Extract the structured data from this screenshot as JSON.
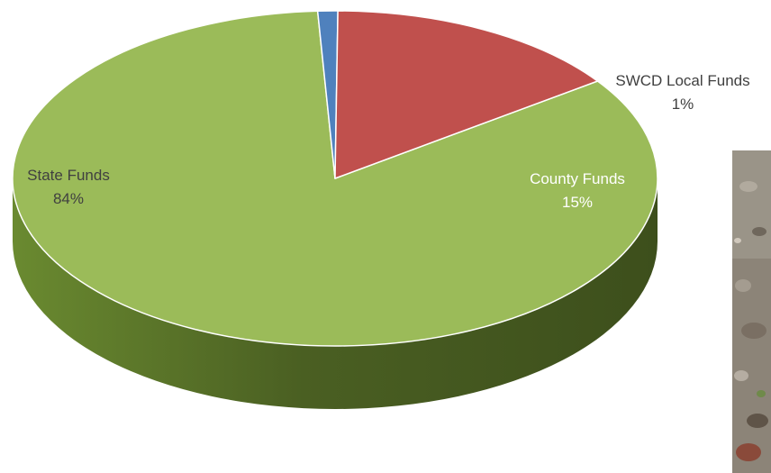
{
  "chart_data": {
    "type": "pie",
    "style": "3d",
    "slices": [
      {
        "label": "State Funds",
        "value": 84,
        "pct_label": "84%",
        "color": "#9bbb59",
        "side": "#4f6228",
        "text_color": "#404040"
      },
      {
        "label": "SWCD Local Funds",
        "value": 1,
        "pct_label": "1%",
        "color": "#4f81bd",
        "side": "#2c4d75",
        "text_color": "#404040"
      },
      {
        "label": "County Funds",
        "value": 15,
        "pct_label": "15%",
        "color": "#c0504d",
        "side": "#632523",
        "text_color": "#ffffff"
      }
    ]
  },
  "photo": {
    "description_icon": "rocky-ground-photo"
  }
}
